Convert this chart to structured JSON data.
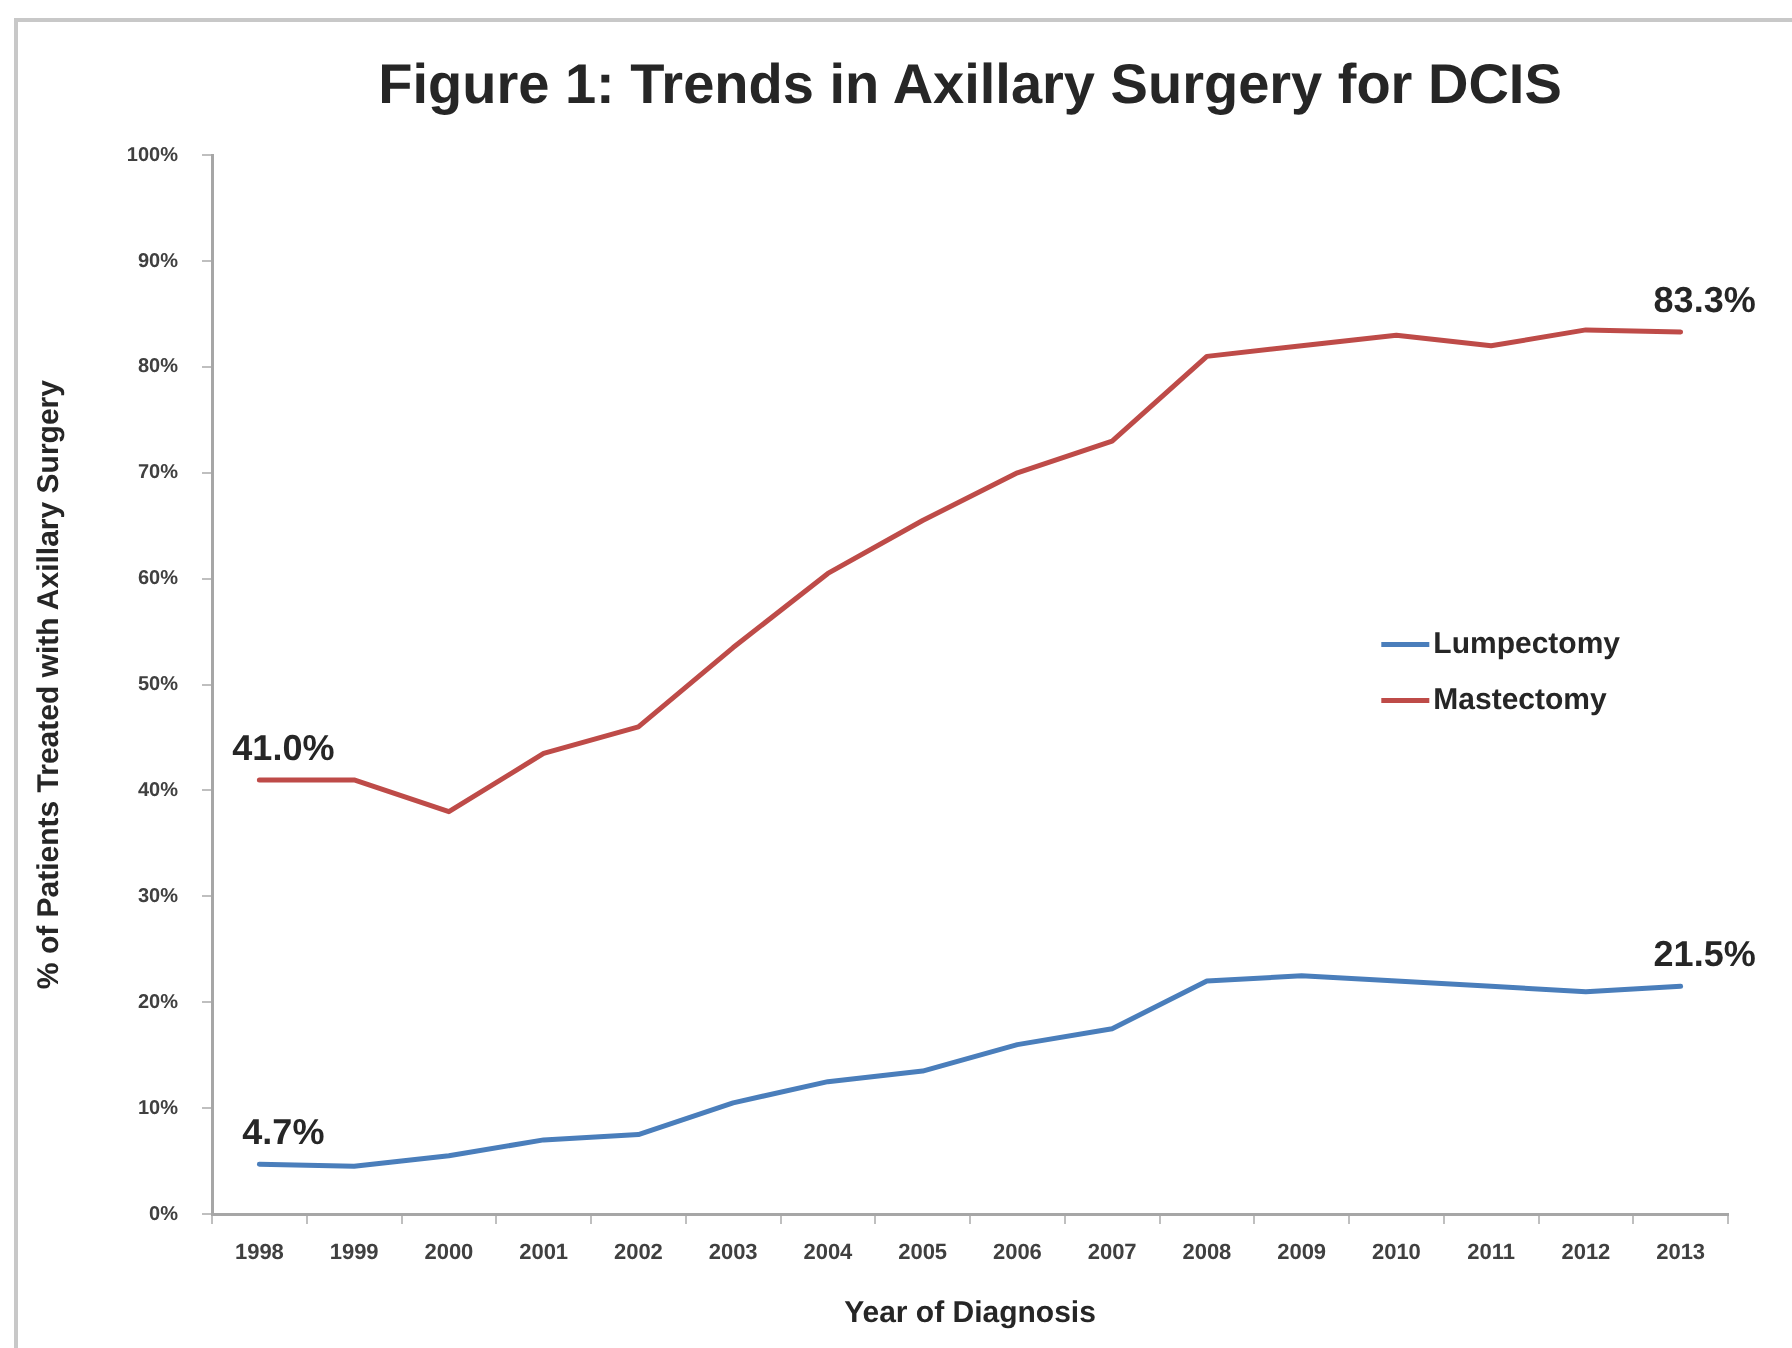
{
  "chart_data": {
    "type": "line",
    "title": "Figure 1: Trends in Axillary Surgery for DCIS",
    "xlabel": "Year of Diagnosis",
    "ylabel": "% of Patients Treated with Axillary Surgery",
    "categories": [
      "1998",
      "1999",
      "2000",
      "2001",
      "2002",
      "2003",
      "2004",
      "2005",
      "2006",
      "2007",
      "2008",
      "2009",
      "2010",
      "2011",
      "2012",
      "2013"
    ],
    "series": [
      {
        "name": "Lumpectomy",
        "color": "#4a7ebb",
        "values": [
          4.7,
          4.5,
          5.5,
          7,
          7.5,
          10.5,
          12.5,
          13.5,
          16,
          17.5,
          22,
          22.5,
          22,
          21.5,
          21,
          21.5
        ],
        "value_labels": [
          "4.7%",
          null,
          null,
          null,
          null,
          null,
          null,
          null,
          null,
          null,
          null,
          null,
          null,
          null,
          null,
          "21.5%"
        ]
      },
      {
        "name": "Mastectomy",
        "color": "#be4b48",
        "values": [
          41.0,
          41,
          38,
          43.5,
          46,
          53.5,
          60.5,
          65.5,
          70,
          73,
          81,
          82,
          83,
          82,
          83.5,
          83.3
        ],
        "value_labels": [
          "41.0%",
          null,
          null,
          null,
          null,
          null,
          null,
          null,
          null,
          null,
          null,
          null,
          null,
          null,
          null,
          "83.3%"
        ]
      }
    ],
    "ylim": [
      0,
      100
    ],
    "yticks": [
      {
        "value": 0,
        "label": "0%"
      },
      {
        "value": 10,
        "label": "10%"
      },
      {
        "value": 20,
        "label": "20%"
      },
      {
        "value": 30,
        "label": "30%"
      },
      {
        "value": 40,
        "label": "40%"
      },
      {
        "value": 50,
        "label": "50%"
      },
      {
        "value": 60,
        "label": "60%"
      },
      {
        "value": 70,
        "label": "70%"
      },
      {
        "value": 80,
        "label": "80%"
      },
      {
        "value": 90,
        "label": "90%"
      },
      {
        "value": 100,
        "label": "100%"
      }
    ],
    "legend": "right"
  }
}
